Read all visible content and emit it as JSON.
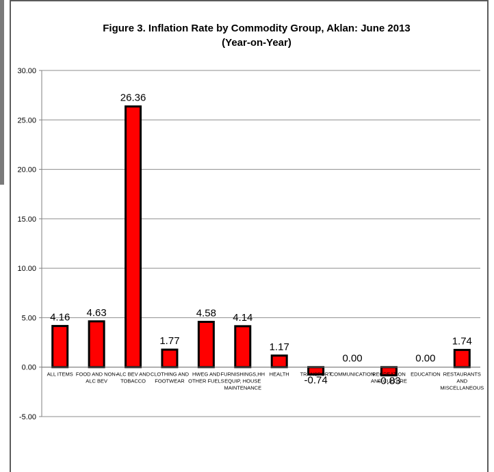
{
  "chart_data": {
    "type": "bar",
    "title": "Figure 3. Inflation Rate by Commodity Group, Aklan: June 2013",
    "subtitle": "(Year-on-Year)",
    "categories": [
      [
        "ALL ITEMS"
      ],
      [
        "FOOD AND NON-",
        "ALC BEV"
      ],
      [
        "ALC BEV AND",
        "TOBACCO"
      ],
      [
        "CLOTHING AND",
        "FOOTWEAR"
      ],
      [
        "HWEG AND",
        "OTHER FUELS"
      ],
      [
        "FURNISHINGS,HH",
        "EQUIP, HOUSE",
        "MAINTENANCE"
      ],
      [
        "HEALTH"
      ],
      [
        "TRANSPORT"
      ],
      [
        "COMMUNICATION"
      ],
      [
        "RECREATION",
        "AND CULTURE"
      ],
      [
        "EDUCATION"
      ],
      [
        "RESTAURANTS",
        "AND",
        "MISCELLANEOUS"
      ]
    ],
    "values": [
      4.16,
      4.63,
      26.36,
      1.77,
      4.58,
      4.14,
      1.17,
      -0.74,
      0.0,
      -0.83,
      0.0,
      1.74
    ],
    "value_labels": [
      "4.16",
      "4.63",
      "26.36",
      "1.77",
      "4.58",
      "4.14",
      "1.17",
      "-0.74",
      "0.00",
      "-0.83",
      "0.00",
      "1.74"
    ],
    "yticks": [
      "30.00",
      "25.00",
      "20.00",
      "15.00",
      "10.00",
      "5.00",
      "0.00",
      "-5.00"
    ],
    "ylim": [
      -5,
      30
    ],
    "grid": true,
    "bar_color": "#ff0000",
    "bar_edge_color": "#000000"
  }
}
